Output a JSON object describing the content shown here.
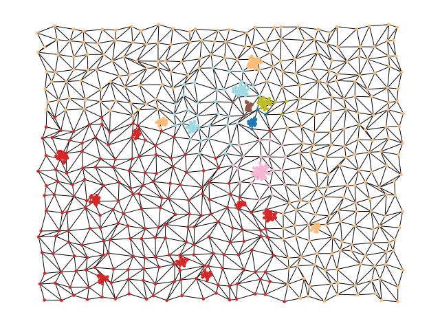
{
  "diagram": {
    "type": "network-graph",
    "layout": "planar-triangulated-mesh",
    "edge_color": "#000000",
    "background": "#ffffff",
    "communities": [
      {
        "id": "red",
        "color": "#d62728"
      },
      {
        "id": "orange",
        "color": "#ffbb78"
      },
      {
        "id": "light-blue",
        "color": "#9edae5"
      },
      {
        "id": "pink",
        "color": "#f7b6d2"
      },
      {
        "id": "olive",
        "color": "#bcbd22"
      },
      {
        "id": "brown",
        "color": "#8c564b"
      },
      {
        "id": "blue",
        "color": "#1f77b4"
      }
    ],
    "legend": null,
    "title": null
  }
}
